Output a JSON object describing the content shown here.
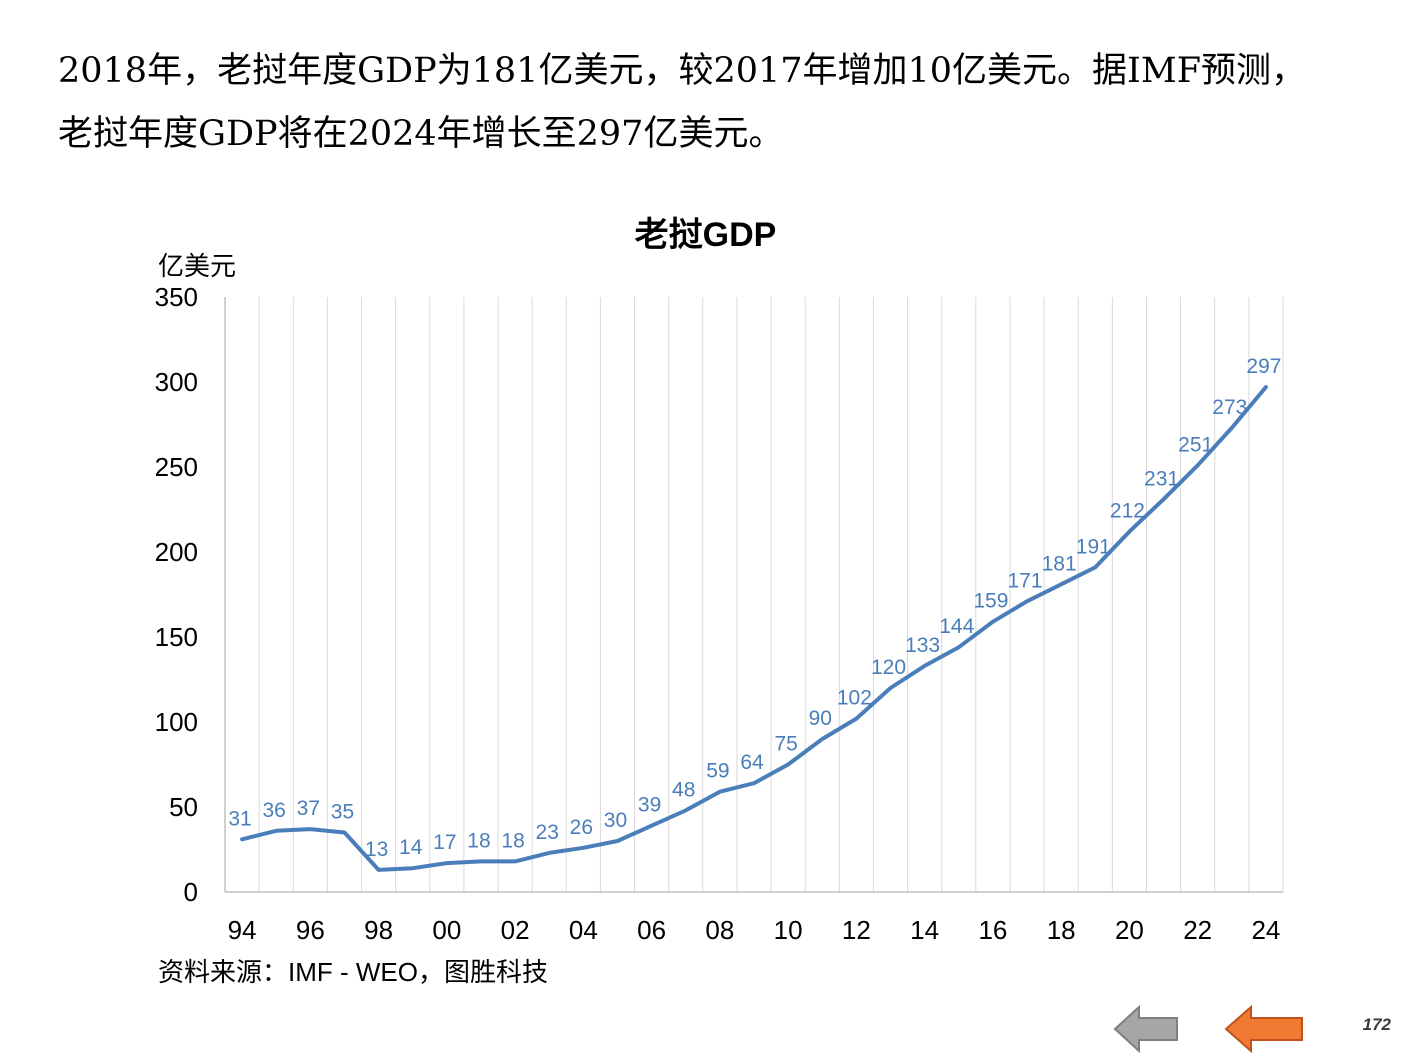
{
  "intro": {
    "line1": "2018年，老挝年度GDP为181亿美元，较2017年增加10亿美元。据IMF预测，",
    "line2": "老挝年度GDP将在2024年增长至297亿美元。"
  },
  "chart_data": {
    "type": "line",
    "title": "老挝GDP",
    "ylabel": "亿美元",
    "xlabel": "",
    "ylim": [
      0,
      350
    ],
    "y_ticks": [
      0,
      50,
      100,
      150,
      200,
      250,
      300,
      350
    ],
    "x_tick_labels": [
      "94",
      "96",
      "98",
      "00",
      "02",
      "04",
      "06",
      "08",
      "10",
      "12",
      "14",
      "16",
      "18",
      "20",
      "22",
      "24"
    ],
    "x": [
      1994,
      1995,
      1996,
      1997,
      1998,
      1999,
      2000,
      2001,
      2002,
      2003,
      2004,
      2005,
      2006,
      2007,
      2008,
      2009,
      2010,
      2011,
      2012,
      2013,
      2014,
      2015,
      2016,
      2017,
      2018,
      2019,
      2020,
      2021,
      2022,
      2023,
      2024
    ],
    "series": [
      {
        "values": [
          31,
          36,
          37,
          35,
          13,
          14,
          17,
          18,
          18,
          23,
          26,
          30,
          39,
          48,
          59,
          64,
          75,
          90,
          102,
          120,
          133,
          144,
          159,
          171,
          181,
          191,
          212,
          231,
          251,
          273,
          297
        ],
        "color": "#4a7ebb"
      }
    ],
    "gridlines": "vertical",
    "legend": "none"
  },
  "source": "资料来源：IMF - WEO，图胜科技",
  "nav": {
    "prev_icon": "left-arrow-gray-icon",
    "next_icon": "left-arrow-orange-icon"
  },
  "page_number": "172"
}
